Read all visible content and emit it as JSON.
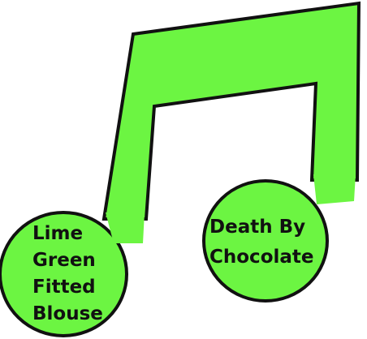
{
  "colors": {
    "note_fill": "#6cf542",
    "outline": "#111111",
    "text": "#111111",
    "background": "#ffffff"
  },
  "left_note": {
    "lines": [
      "Lime",
      "Green",
      "Fitted",
      "Blouse"
    ]
  },
  "right_note": {
    "lines": [
      "Death By",
      "Chocolate"
    ]
  }
}
